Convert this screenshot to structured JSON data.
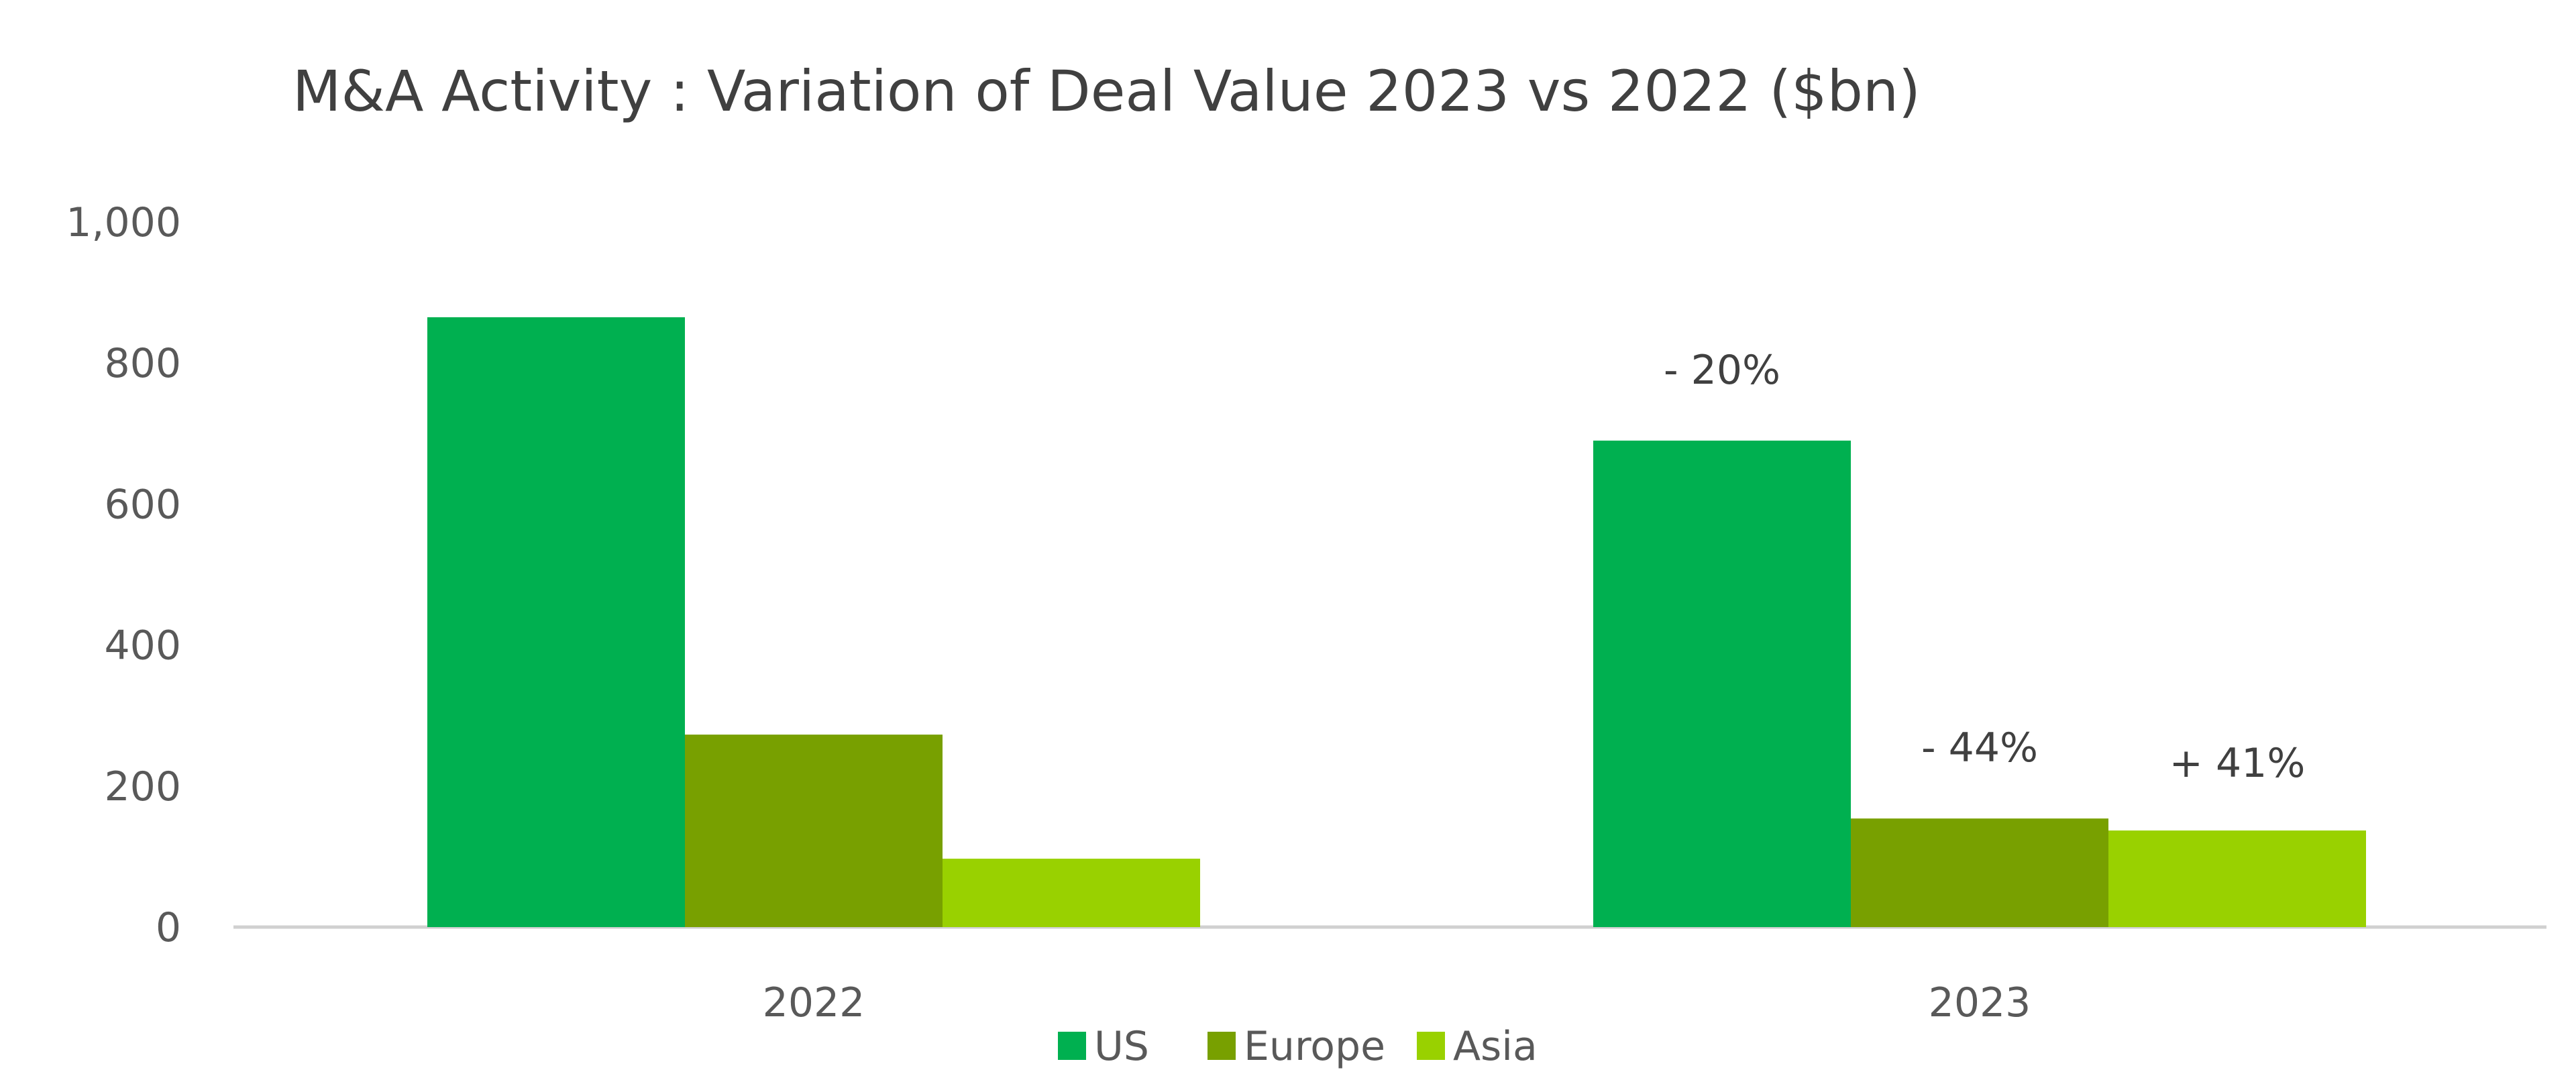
{
  "chart_data": {
    "type": "bar",
    "title": "M&A Activity : Variation of Deal Value 2023 vs 2022 ($bn)",
    "xlabel": "",
    "ylabel": "",
    "ylim": [
      0,
      1000
    ],
    "yticks": [
      0,
      200,
      400,
      600,
      800,
      1000
    ],
    "ytick_labels": [
      "0",
      "200",
      "400",
      "600",
      "800",
      "1,000"
    ],
    "grid": false,
    "legend_position": "bottom",
    "categories": [
      "2022",
      "2023"
    ],
    "series": [
      {
        "name": "US",
        "color": "#00B050",
        "values": [
          865,
          690
        ]
      },
      {
        "name": "Europe",
        "color": "#78A000",
        "values": [
          273,
          154
        ]
      },
      {
        "name": "Asia",
        "color": "#99D100",
        "values": [
          97,
          137
        ]
      }
    ],
    "annotations": [
      {
        "category": "2023",
        "series": "US",
        "text": "- 20%"
      },
      {
        "category": "2023",
        "series": "Europe",
        "text": "- 44%"
      },
      {
        "category": "2023",
        "series": "Asia",
        "text": "+ 41%"
      }
    ]
  }
}
